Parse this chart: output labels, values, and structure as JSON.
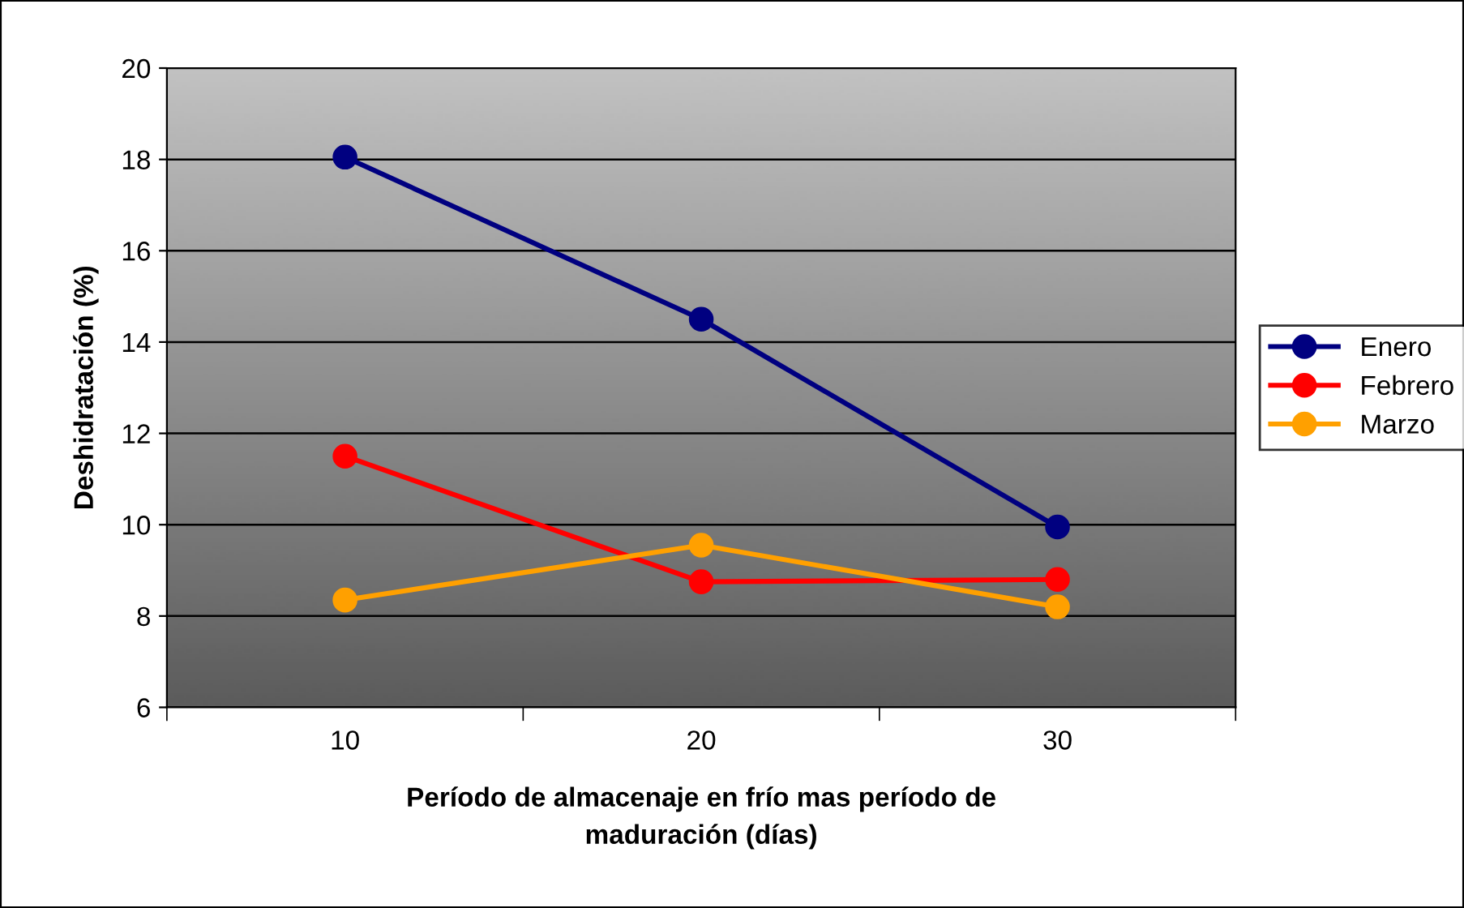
{
  "chart_data": {
    "type": "line",
    "xlabel": "Período de almacenaje en frío mas período de\nmaduración (días)",
    "ylabel": "Deshidratación (%)",
    "categories": [
      "10",
      "20",
      "30"
    ],
    "series": [
      {
        "name": "Enero",
        "color": "#000080",
        "values": [
          18.05,
          14.5,
          9.95
        ]
      },
      {
        "name": "Febrero",
        "color": "#ff0000",
        "values": [
          11.5,
          8.75,
          8.8
        ]
      },
      {
        "name": "Marzo",
        "color": "#ffa000",
        "values": [
          8.35,
          9.55,
          8.2
        ]
      }
    ],
    "ylim": [
      6,
      20
    ],
    "yticks": [
      6,
      8,
      10,
      12,
      14,
      16,
      18,
      20
    ],
    "grid": "y",
    "legend": "right",
    "marker": "circle",
    "line_style": "solid"
  }
}
